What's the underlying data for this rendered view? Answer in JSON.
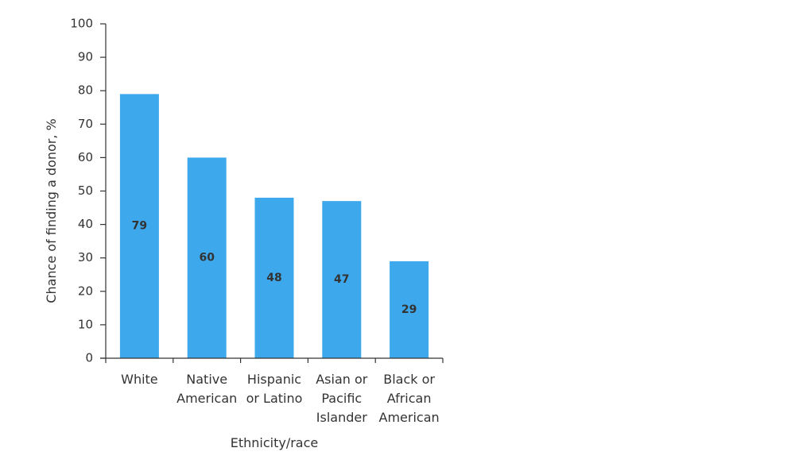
{
  "chart_data": {
    "type": "bar",
    "categories": [
      [
        "White"
      ],
      [
        "Native",
        "American"
      ],
      [
        "Hispanic",
        "or Latino"
      ],
      [
        "Asian or",
        "Pacific",
        "Islander"
      ],
      [
        "Black or",
        "African",
        "American"
      ]
    ],
    "values": [
      79,
      60,
      48,
      47,
      29
    ],
    "data_labels": [
      "79",
      "60",
      "48",
      "47",
      "29"
    ],
    "xlabel": "Ethnicity/race",
    "ylabel": "Chance of finding a donor, %",
    "ylim": [
      0,
      100
    ],
    "yticks": [
      0,
      10,
      20,
      30,
      40,
      50,
      60,
      70,
      80,
      90,
      100
    ],
    "bar_color": "#3DA9EC",
    "grid": false,
    "legend": "none"
  }
}
